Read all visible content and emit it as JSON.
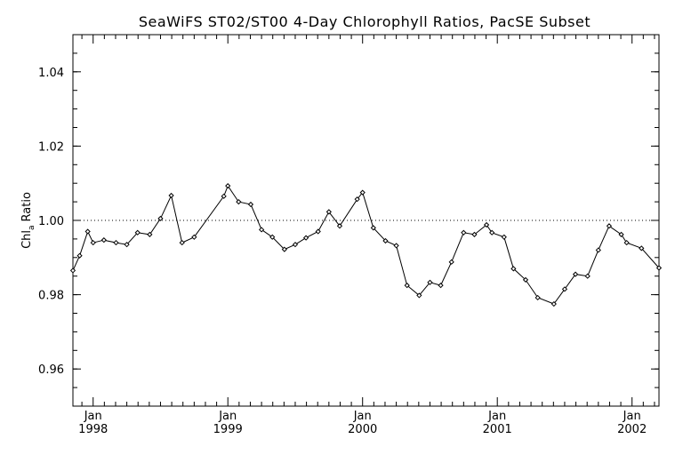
{
  "chart_data": {
    "type": "line",
    "title": "SeaWiFS ST02/ST00 4-Day Chlorophyll Ratios, PacSE Subset",
    "xlabel": "",
    "ylabel": {
      "prefix": "Chl",
      "subscript": "a",
      "suffix": "Ratio"
    },
    "xlim": [
      1997.85,
      2002.2
    ],
    "ylim": [
      0.95,
      1.05
    ],
    "y_ticks": [
      0.96,
      0.98,
      1.0,
      1.02,
      1.04
    ],
    "y_tick_labels": [
      "0.96",
      "0.98",
      "1.00",
      "1.02",
      "1.04"
    ],
    "x_tick_labels": [
      {
        "x": 1998.0,
        "month": "Jan",
        "year": "1998"
      },
      {
        "x": 1999.0,
        "month": "Jan",
        "year": "1999"
      },
      {
        "x": 2000.0,
        "month": "Jan",
        "year": "2000"
      },
      {
        "x": 2001.0,
        "month": "Jan",
        "year": "2001"
      },
      {
        "x": 2002.0,
        "month": "Jan",
        "year": "2002"
      }
    ],
    "reference_line": {
      "y": 1.0,
      "style": "dotted"
    },
    "grid": false,
    "series": [
      {
        "marker": "diamond",
        "points": [
          [
            1997.85,
            0.9865
          ],
          [
            1997.9,
            0.9905
          ],
          [
            1997.96,
            0.997
          ],
          [
            1998.0,
            0.994
          ],
          [
            1998.08,
            0.9947
          ],
          [
            1998.17,
            0.994
          ],
          [
            1998.25,
            0.9935
          ],
          [
            1998.33,
            0.9967
          ],
          [
            1998.42,
            0.9962
          ],
          [
            1998.5,
            1.0005
          ],
          [
            1998.58,
            1.0067
          ],
          [
            1998.66,
            0.994
          ],
          [
            1998.75,
            0.9955
          ],
          [
            1998.97,
            1.0065
          ],
          [
            1999.0,
            1.0093
          ],
          [
            1999.08,
            1.005
          ],
          [
            1999.17,
            1.0043
          ],
          [
            1999.25,
            0.9975
          ],
          [
            1999.33,
            0.9955
          ],
          [
            1999.42,
            0.9922
          ],
          [
            1999.5,
            0.9935
          ],
          [
            1999.58,
            0.9953
          ],
          [
            1999.67,
            0.997
          ],
          [
            1999.75,
            1.0023
          ],
          [
            1999.83,
            0.9985
          ],
          [
            1999.96,
            1.0057
          ],
          [
            2000.0,
            1.0075
          ],
          [
            2000.08,
            0.998
          ],
          [
            2000.17,
            0.9945
          ],
          [
            2000.25,
            0.9932
          ],
          [
            2000.33,
            0.9825
          ],
          [
            2000.42,
            0.9798
          ],
          [
            2000.5,
            0.9833
          ],
          [
            2000.58,
            0.9825
          ],
          [
            2000.66,
            0.9888
          ],
          [
            2000.75,
            0.9967
          ],
          [
            2000.83,
            0.9962
          ],
          [
            2000.92,
            0.9988
          ],
          [
            2000.96,
            0.9967
          ],
          [
            2001.05,
            0.9955
          ],
          [
            2001.12,
            0.987
          ],
          [
            2001.21,
            0.984
          ],
          [
            2001.3,
            0.9792
          ],
          [
            2001.42,
            0.9775
          ],
          [
            2001.5,
            0.9815
          ],
          [
            2001.58,
            0.9855
          ],
          [
            2001.67,
            0.985
          ],
          [
            2001.75,
            0.992
          ],
          [
            2001.83,
            0.9985
          ],
          [
            2001.92,
            0.9962
          ],
          [
            2001.96,
            0.994
          ],
          [
            2002.07,
            0.9925
          ],
          [
            2002.2,
            0.9872
          ]
        ]
      }
    ]
  }
}
